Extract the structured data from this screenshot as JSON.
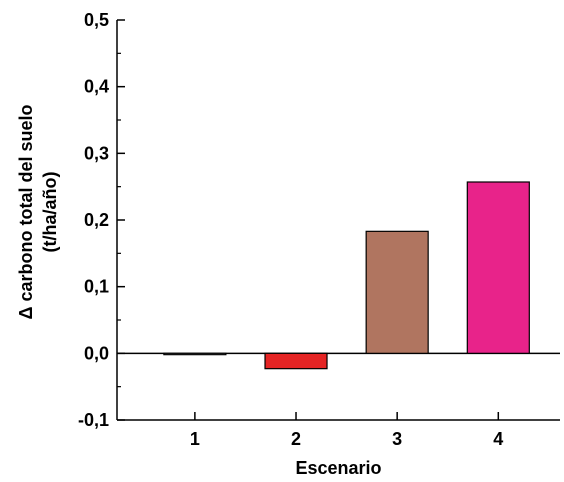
{
  "chart_data": {
    "type": "bar",
    "categories": [
      "1",
      "2",
      "3",
      "4"
    ],
    "values": [
      -0.002,
      -0.023,
      0.183,
      0.257
    ],
    "colors": [
      "#d4d4d4",
      "#e52424",
      "#b07560",
      "#e8238a"
    ],
    "xlabel": "Escenario",
    "ylabel_line1": "Δ carbono total del suelo",
    "ylabel_line2": "(t/ha/año)",
    "ylim": [
      -0.1,
      0.5
    ],
    "yticks": [
      "-0,1",
      "0,0",
      "0,1",
      "0,2",
      "0,3",
      "0,4",
      "0,5"
    ],
    "ytick_values": [
      -0.1,
      0.0,
      0.1,
      0.2,
      0.3,
      0.4,
      0.5
    ],
    "zero_line": true,
    "grid": false
  }
}
